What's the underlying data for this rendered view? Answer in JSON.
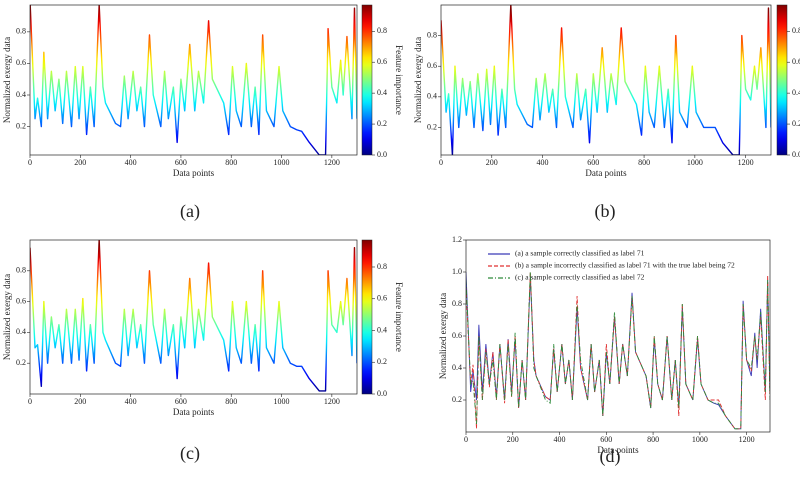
{
  "chart_data": [
    {
      "type": "line",
      "caption": "(a)",
      "xlabel": "Data points",
      "ylabel": "Normalized exergy data",
      "colormap": "jet",
      "colorbar_label": "Feature importance",
      "colorbar_lim": [
        0,
        0.97
      ],
      "colorbar_ticks": [
        {
          "value": 0,
          "label": "0.0"
        },
        0.2,
        0.4,
        0.6,
        0.8
      ],
      "xlim": [
        0,
        1300
      ],
      "xticks": [
        0,
        200,
        400,
        600,
        800,
        1000,
        1200
      ],
      "ylim": [
        0.02,
        0.97
      ],
      "yticks": [
        0.2,
        0.4,
        0.6,
        0.8
      ],
      "x": [
        0,
        20,
        30,
        45,
        55,
        70,
        85,
        100,
        115,
        130,
        145,
        165,
        180,
        195,
        210,
        225,
        240,
        255,
        275,
        290,
        300,
        340,
        360,
        375,
        390,
        410,
        425,
        440,
        455,
        475,
        490,
        520,
        535,
        550,
        570,
        585,
        600,
        615,
        635,
        655,
        670,
        690,
        710,
        725,
        770,
        790,
        805,
        820,
        840,
        860,
        880,
        895,
        910,
        925,
        940,
        970,
        990,
        1005,
        1035,
        1060,
        1080,
        1110,
        1150,
        1175,
        1185,
        1200,
        1220,
        1235,
        1245,
        1260,
        1280,
        1290,
        1300
      ],
      "values": [
        1.0,
        0.25,
        0.38,
        0.2,
        0.67,
        0.25,
        0.55,
        0.3,
        0.5,
        0.22,
        0.55,
        0.2,
        0.58,
        0.25,
        0.58,
        0.15,
        0.45,
        0.2,
        0.97,
        0.45,
        0.35,
        0.22,
        0.2,
        0.52,
        0.25,
        0.55,
        0.3,
        0.45,
        0.2,
        0.78,
        0.4,
        0.2,
        0.55,
        0.25,
        0.45,
        0.1,
        0.5,
        0.3,
        0.72,
        0.3,
        0.55,
        0.35,
        0.87,
        0.5,
        0.35,
        0.15,
        0.58,
        0.3,
        0.2,
        0.6,
        0.2,
        0.45,
        0.15,
        0.78,
        0.3,
        0.2,
        0.58,
        0.3,
        0.2,
        0.18,
        0.17,
        0.1,
        0.02,
        0.02,
        0.82,
        0.45,
        0.35,
        0.62,
        0.4,
        0.77,
        0.25,
        0.95,
        0.25
      ]
    },
    {
      "type": "line",
      "caption": "(b)",
      "xlabel": "Data points",
      "ylabel": "Normalized exergy data",
      "colormap": "jet",
      "colorbar_label": "Feature importance",
      "colorbar_lim": [
        0,
        0.97
      ],
      "colorbar_ticks": [
        {
          "value": 0,
          "label": "0.0"
        },
        0.2,
        0.4,
        0.6,
        0.8
      ],
      "xlim": [
        0,
        1300
      ],
      "xticks": [
        0,
        200,
        400,
        600,
        800,
        1000,
        1200
      ],
      "ylim": [
        0.02,
        1.0
      ],
      "yticks": [
        0.2,
        0.4,
        0.6,
        0.8
      ],
      "x": [
        0,
        20,
        30,
        45,
        55,
        70,
        85,
        100,
        115,
        130,
        145,
        165,
        180,
        195,
        210,
        225,
        240,
        255,
        275,
        290,
        300,
        340,
        360,
        375,
        390,
        410,
        425,
        440,
        455,
        475,
        490,
        520,
        535,
        550,
        570,
        585,
        600,
        615,
        635,
        655,
        670,
        690,
        710,
        725,
        770,
        790,
        805,
        820,
        840,
        860,
        880,
        895,
        910,
        925,
        940,
        970,
        990,
        1005,
        1035,
        1060,
        1080,
        1110,
        1150,
        1175,
        1185,
        1200,
        1220,
        1235,
        1245,
        1260,
        1280,
        1290,
        1300
      ],
      "values": [
        0.9,
        0.3,
        0.42,
        0.02,
        0.6,
        0.2,
        0.52,
        0.28,
        0.5,
        0.2,
        0.55,
        0.18,
        0.58,
        0.22,
        0.6,
        0.15,
        0.45,
        0.2,
        1.0,
        0.45,
        0.35,
        0.22,
        0.2,
        0.52,
        0.25,
        0.55,
        0.3,
        0.45,
        0.2,
        0.85,
        0.4,
        0.2,
        0.55,
        0.25,
        0.45,
        0.1,
        0.55,
        0.3,
        0.72,
        0.3,
        0.55,
        0.35,
        0.85,
        0.5,
        0.35,
        0.15,
        0.6,
        0.3,
        0.2,
        0.6,
        0.2,
        0.45,
        0.1,
        0.8,
        0.3,
        0.2,
        0.6,
        0.3,
        0.2,
        0.2,
        0.2,
        0.1,
        0.02,
        0.02,
        0.8,
        0.45,
        0.38,
        0.6,
        0.45,
        0.72,
        0.2,
        0.98,
        0.2
      ]
    },
    {
      "type": "line",
      "caption": "(c)",
      "xlabel": "Data points",
      "ylabel": "Normalized exergy data",
      "colormap": "jet",
      "colorbar_label": "Feature importance",
      "colorbar_lim": [
        0,
        0.97
      ],
      "colorbar_ticks": [
        {
          "value": 0,
          "label": "0.0"
        },
        0.2,
        0.4,
        0.6,
        0.8
      ],
      "xlim": [
        0,
        1300
      ],
      "xticks": [
        0,
        200,
        400,
        600,
        800,
        1000,
        1200
      ],
      "ylim": [
        0,
        1.0
      ],
      "yticks": [
        0.2,
        0.4,
        0.6,
        0.8
      ],
      "x": [
        0,
        20,
        30,
        45,
        55,
        70,
        85,
        100,
        115,
        130,
        145,
        165,
        180,
        195,
        210,
        225,
        240,
        255,
        275,
        290,
        300,
        340,
        360,
        375,
        390,
        410,
        425,
        440,
        455,
        475,
        490,
        520,
        535,
        550,
        570,
        585,
        600,
        615,
        635,
        655,
        670,
        690,
        710,
        725,
        770,
        790,
        805,
        820,
        840,
        860,
        880,
        895,
        910,
        925,
        940,
        970,
        990,
        1005,
        1035,
        1060,
        1080,
        1110,
        1150,
        1175,
        1185,
        1200,
        1220,
        1235,
        1245,
        1260,
        1280,
        1290,
        1300
      ],
      "values": [
        0.95,
        0.3,
        0.32,
        0.05,
        0.6,
        0.2,
        0.5,
        0.3,
        0.45,
        0.2,
        0.55,
        0.2,
        0.55,
        0.22,
        0.62,
        0.15,
        0.45,
        0.2,
        1.0,
        0.4,
        0.35,
        0.2,
        0.18,
        0.55,
        0.25,
        0.55,
        0.3,
        0.45,
        0.2,
        0.8,
        0.45,
        0.2,
        0.55,
        0.25,
        0.45,
        0.1,
        0.5,
        0.3,
        0.75,
        0.3,
        0.55,
        0.35,
        0.85,
        0.5,
        0.35,
        0.15,
        0.6,
        0.3,
        0.2,
        0.6,
        0.2,
        0.45,
        0.15,
        0.8,
        0.3,
        0.2,
        0.6,
        0.3,
        0.2,
        0.18,
        0.18,
        0.1,
        0.02,
        0.02,
        0.8,
        0.45,
        0.4,
        0.6,
        0.45,
        0.75,
        0.25,
        0.95,
        0.2
      ]
    },
    {
      "type": "line",
      "caption": "(d)",
      "xlabel": "Data points",
      "ylabel": "Normalized exergy data",
      "legend": "upper left",
      "xlim": [
        0,
        1300
      ],
      "xticks": [
        0,
        200,
        400,
        600,
        800,
        1000,
        1200
      ],
      "ylim": [
        0,
        1.2
      ],
      "yticks": [
        0.2,
        0.4,
        0.6,
        0.8,
        {
          "value": 1.0,
          "label": "1.0"
        },
        1.2
      ],
      "x": [
        0,
        20,
        30,
        45,
        55,
        70,
        85,
        100,
        115,
        130,
        145,
        165,
        180,
        195,
        210,
        225,
        240,
        255,
        275,
        290,
        300,
        340,
        360,
        375,
        390,
        410,
        425,
        440,
        455,
        475,
        490,
        520,
        535,
        550,
        570,
        585,
        600,
        615,
        635,
        655,
        670,
        690,
        710,
        725,
        770,
        790,
        805,
        820,
        840,
        860,
        880,
        895,
        910,
        925,
        940,
        970,
        990,
        1005,
        1035,
        1060,
        1080,
        1110,
        1150,
        1175,
        1185,
        1200,
        1220,
        1235,
        1245,
        1260,
        1280,
        1290,
        1300
      ],
      "series": [
        {
          "name": "(a) a sample correctly classified as label 71",
          "color": "#3a3ab8",
          "linestyle": "solid",
          "values": [
            1.0,
            0.25,
            0.38,
            0.2,
            0.67,
            0.25,
            0.55,
            0.3,
            0.5,
            0.22,
            0.55,
            0.2,
            0.58,
            0.25,
            0.58,
            0.15,
            0.45,
            0.2,
            0.97,
            0.45,
            0.35,
            0.22,
            0.2,
            0.52,
            0.25,
            0.55,
            0.3,
            0.45,
            0.2,
            0.78,
            0.4,
            0.2,
            0.55,
            0.25,
            0.45,
            0.1,
            0.5,
            0.3,
            0.72,
            0.3,
            0.55,
            0.35,
            0.87,
            0.5,
            0.35,
            0.15,
            0.58,
            0.3,
            0.2,
            0.6,
            0.2,
            0.45,
            0.15,
            0.78,
            0.3,
            0.2,
            0.58,
            0.3,
            0.2,
            0.18,
            0.17,
            0.1,
            0.02,
            0.02,
            0.82,
            0.45,
            0.35,
            0.62,
            0.4,
            0.77,
            0.25,
            0.95,
            0.25
          ]
        },
        {
          "name": "(b) a sample incorrectly classified as label 71 with the true label being 72",
          "color": "#e03030",
          "linestyle": "dashed",
          "values": [
            0.9,
            0.3,
            0.42,
            0.02,
            0.6,
            0.2,
            0.52,
            0.28,
            0.5,
            0.2,
            0.55,
            0.18,
            0.58,
            0.22,
            0.6,
            0.15,
            0.45,
            0.2,
            1.0,
            0.45,
            0.35,
            0.22,
            0.2,
            0.52,
            0.25,
            0.55,
            0.3,
            0.45,
            0.2,
            0.85,
            0.4,
            0.2,
            0.55,
            0.25,
            0.45,
            0.1,
            0.55,
            0.3,
            0.72,
            0.3,
            0.55,
            0.35,
            0.85,
            0.5,
            0.35,
            0.15,
            0.6,
            0.3,
            0.2,
            0.6,
            0.2,
            0.45,
            0.1,
            0.8,
            0.3,
            0.2,
            0.6,
            0.3,
            0.2,
            0.2,
            0.2,
            0.1,
            0.02,
            0.02,
            0.8,
            0.45,
            0.38,
            0.6,
            0.45,
            0.72,
            0.2,
            0.98,
            0.2
          ]
        },
        {
          "name": "(c) a sample correctly classified as label 72",
          "color": "#2e8b3a",
          "linestyle": "dashdot",
          "values": [
            0.95,
            0.3,
            0.32,
            0.05,
            0.6,
            0.2,
            0.5,
            0.3,
            0.45,
            0.2,
            0.55,
            0.2,
            0.55,
            0.22,
            0.62,
            0.15,
            0.45,
            0.2,
            1.0,
            0.4,
            0.35,
            0.2,
            0.18,
            0.55,
            0.25,
            0.55,
            0.3,
            0.45,
            0.2,
            0.8,
            0.45,
            0.2,
            0.55,
            0.25,
            0.45,
            0.1,
            0.5,
            0.3,
            0.75,
            0.3,
            0.55,
            0.35,
            0.85,
            0.5,
            0.35,
            0.15,
            0.6,
            0.3,
            0.2,
            0.6,
            0.2,
            0.45,
            0.15,
            0.8,
            0.3,
            0.2,
            0.6,
            0.3,
            0.2,
            0.18,
            0.18,
            0.1,
            0.02,
            0.02,
            0.8,
            0.45,
            0.4,
            0.6,
            0.45,
            0.75,
            0.25,
            0.95,
            0.2
          ]
        }
      ]
    }
  ]
}
